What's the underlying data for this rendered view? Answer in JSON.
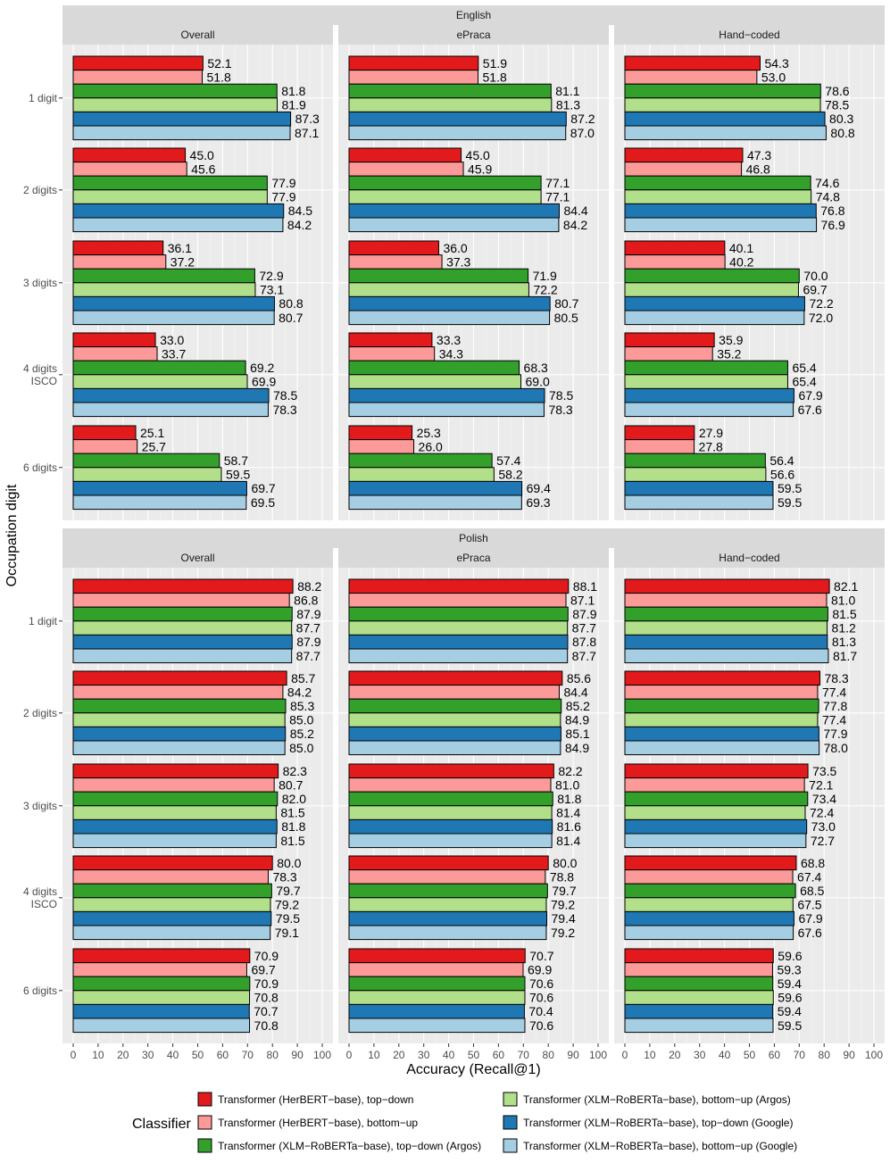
{
  "chart_data": {
    "type": "bar",
    "orientation": "horizontal",
    "xlabel": "Accuracy (Recall@1)",
    "ylabel": "Occupation digit",
    "xlim": [
      0,
      100
    ],
    "x_ticks": [
      0,
      10,
      20,
      30,
      40,
      50,
      60,
      70,
      80,
      90,
      100
    ],
    "categories": [
      "1 digit",
      "2 digits",
      "3 digits",
      "4 digits\nISCO",
      "6 digits"
    ],
    "row_facets": [
      "English",
      "Polish"
    ],
    "column_facets": [
      "Overall",
      "ePraca",
      "Hand−coded"
    ],
    "legend_title": "Classifier",
    "legend_position": "bottom",
    "grid": true,
    "series": [
      {
        "name": "Transformer (HerBERT−base), top−down",
        "color": "#e31a1c"
      },
      {
        "name": "Transformer (HerBERT−base), bottom−up",
        "color": "#fb9a99"
      },
      {
        "name": "Transformer (XLM−RoBERTa−base), top−down (Argos)",
        "color": "#33a02c"
      },
      {
        "name": "Transformer (XLM−RoBERTa−base), bottom−up (Argos)",
        "color": "#b2df8a"
      },
      {
        "name": "Transformer (XLM−RoBERTa−base), top−down (Google)",
        "color": "#1f78b4"
      },
      {
        "name": "Transformer (XLM−RoBERTa−base), bottom−up (Google)",
        "color": "#a6cee3"
      }
    ],
    "values": {
      "English": {
        "Overall": [
          [
            52.1,
            51.8,
            81.8,
            81.9,
            87.3,
            87.1
          ],
          [
            45.0,
            45.6,
            77.9,
            77.9,
            84.5,
            84.2
          ],
          [
            36.1,
            37.2,
            72.9,
            73.1,
            80.8,
            80.7
          ],
          [
            33.0,
            33.7,
            69.2,
            69.9,
            78.5,
            78.3
          ],
          [
            25.1,
            25.7,
            58.7,
            59.5,
            69.7,
            69.5
          ]
        ],
        "ePraca": [
          [
            51.9,
            51.8,
            81.1,
            81.3,
            87.2,
            87.0
          ],
          [
            45.0,
            45.9,
            77.1,
            77.1,
            84.4,
            84.2
          ],
          [
            36.0,
            37.3,
            71.9,
            72.2,
            80.7,
            80.5
          ],
          [
            33.3,
            34.3,
            68.3,
            69.0,
            78.5,
            78.3
          ],
          [
            25.3,
            26.0,
            57.4,
            58.2,
            69.4,
            69.3
          ]
        ],
        "Hand−coded": [
          [
            54.3,
            53.0,
            78.6,
            78.5,
            80.3,
            80.8
          ],
          [
            47.3,
            46.8,
            74.6,
            74.8,
            76.8,
            76.9
          ],
          [
            40.1,
            40.2,
            70.0,
            69.7,
            72.2,
            72.0
          ],
          [
            35.9,
            35.2,
            65.4,
            65.4,
            67.9,
            67.6
          ],
          [
            27.9,
            27.8,
            56.4,
            56.6,
            59.5,
            59.5
          ]
        ]
      },
      "Polish": {
        "Overall": [
          [
            88.2,
            86.8,
            87.9,
            87.7,
            87.9,
            87.7
          ],
          [
            85.7,
            84.2,
            85.3,
            85.0,
            85.2,
            85.0
          ],
          [
            82.3,
            80.7,
            82.0,
            81.5,
            81.8,
            81.5
          ],
          [
            80.0,
            78.3,
            79.7,
            79.2,
            79.5,
            79.1
          ],
          [
            70.9,
            69.7,
            70.9,
            70.8,
            70.7,
            70.8
          ]
        ],
        "ePraca": [
          [
            88.1,
            87.1,
            87.9,
            87.7,
            87.8,
            87.7
          ],
          [
            85.6,
            84.4,
            85.2,
            84.9,
            85.1,
            84.9
          ],
          [
            82.2,
            81.0,
            81.8,
            81.4,
            81.6,
            81.4
          ],
          [
            80.0,
            78.8,
            79.7,
            79.2,
            79.4,
            79.2
          ],
          [
            70.7,
            69.9,
            70.6,
            70.6,
            70.4,
            70.6
          ]
        ],
        "Hand−coded": [
          [
            82.1,
            81.0,
            81.5,
            81.2,
            81.3,
            81.7
          ],
          [
            78.3,
            77.4,
            77.8,
            77.4,
            77.9,
            78.0
          ],
          [
            73.5,
            72.1,
            73.4,
            72.4,
            73.0,
            72.7
          ],
          [
            68.8,
            67.4,
            68.5,
            67.5,
            67.9,
            67.6
          ],
          [
            59.6,
            59.3,
            59.4,
            59.6,
            59.4,
            59.5
          ]
        ]
      }
    }
  }
}
